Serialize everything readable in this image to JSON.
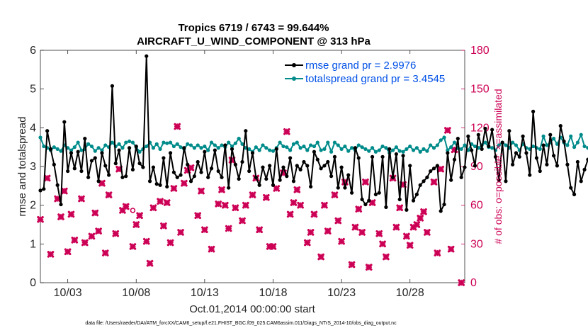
{
  "chart_data": {
    "type": "line",
    "title_line1": "Tropics 6719 / 6743 = 99.644%",
    "title_line2": "AIRCRAFT_U_WIND_COMPONENT @ 313 hPa",
    "ylabel_left": "rmse and totalspread",
    "ylabel_right": "# of obs: o=possible; ×=assimilated",
    "xlabel": "Oct.01,2014 00:00:00 start",
    "footnote": "data file: /Users/raeder/DAI/ATM_forcXX/CAM6_setup/f.e21.FHIST_BGC.f09_025.CAM6assim.011/Diags_NTrS_2014-10/obs_diag_output.nc",
    "xlim": [
      1,
      32
    ],
    "ylim_left": [
      0,
      6
    ],
    "ylim_right": [
      0,
      180
    ],
    "x_tick_values": [
      3,
      8,
      13,
      18,
      23,
      28
    ],
    "x_tick_labels": [
      "10/03",
      "10/08",
      "10/13",
      "10/18",
      "10/23",
      "10/28"
    ],
    "y_left_ticks": [
      "0",
      "1",
      "2",
      "3",
      "4",
      "5",
      "6"
    ],
    "y_right_ticks": [
      "0",
      "30",
      "60",
      "90",
      "120",
      "150",
      "180"
    ],
    "x_step_days": 0.25,
    "x_start": 1.0,
    "series": [
      {
        "name": "rmse",
        "legend": "rmse grand pr = 2.9976",
        "color": "#000000",
        "axis": "left",
        "values": [
          2.38,
          2.42,
          3.92,
          3.45,
          3.05,
          2.52,
          2.02,
          4.15,
          2.88,
          3.35,
          2.95,
          3.38,
          2.88,
          3.72,
          2.72,
          3.15,
          3.22,
          2.62,
          3.35,
          3.02,
          2.78,
          5.08,
          3.08,
          3.42,
          2.72,
          2.75,
          3.48,
          2.92,
          3.52,
          3.08,
          2.98,
          5.85,
          2.62,
          2.98,
          2.55,
          2.52,
          3.22,
          2.48,
          3.35,
          2.85,
          2.72,
          2.78,
          3.48,
          3.05,
          2.62,
          2.75,
          3.12,
          2.85,
          3.38,
          2.72,
          2.95,
          3.42,
          2.88,
          2.72,
          3.55,
          2.45,
          3.45,
          3.05,
          2.68,
          3.12,
          3.92,
          2.88,
          3.35,
          2.72,
          2.52,
          2.98,
          2.68,
          3.02,
          2.52,
          3.45,
          2.65,
          2.98,
          2.75,
          3.22,
          2.62,
          3.02,
          2.92,
          3.12,
          3.02,
          2.48,
          3.38,
          3.18,
          2.95,
          3.02,
          3.12,
          2.75,
          3.25,
          2.45,
          2.98,
          2.45,
          2.78,
          2.32,
          3.48,
          3.22,
          2.15,
          2.02,
          2.12,
          3.25,
          2.28,
          2.32,
          3.25,
          1.95,
          3.45,
          2.72,
          3.32,
          2.15,
          3.28,
          1.88,
          3.02,
          2.12,
          2.28,
          2.52,
          2.62,
          2.72,
          2.88,
          2.95,
          3.02,
          1.85,
          2.02,
          3.35,
          2.65,
          3.18,
          3.72,
          2.72,
          2.98,
          3.78,
          3.42,
          3.02,
          3.82,
          3.45,
          3.98,
          3.52,
          3.95,
          3.25,
          2.65,
          3.62,
          2.62,
          3.92,
          3.05,
          3.35,
          3.25,
          3.78,
          3.35,
          2.78,
          4.42,
          3.22,
          2.88,
          3.55,
          3.05,
          3.82,
          3.28,
          3.02,
          4.05,
          3.65,
          3.05,
          2.45,
          2.28,
          3.12,
          2.62,
          2.92,
          3.18
        ]
      },
      {
        "name": "totalspread",
        "legend": "totalspread grand pr = 3.4545",
        "color": "#008b8b",
        "axis": "left",
        "values": [
          3.75,
          3.52,
          3.48,
          3.42,
          3.5,
          3.45,
          3.4,
          3.55,
          3.48,
          3.42,
          3.5,
          3.62,
          3.42,
          3.45,
          3.58,
          3.52,
          3.4,
          3.48,
          3.42,
          3.55,
          3.5,
          3.62,
          3.52,
          3.58,
          3.48,
          3.62,
          3.65,
          3.62,
          3.5,
          3.38,
          3.45,
          3.52,
          3.62,
          3.48,
          3.58,
          3.45,
          3.62,
          3.6,
          3.62,
          3.52,
          3.58,
          3.5,
          3.45,
          3.58,
          3.55,
          3.48,
          3.55,
          3.48,
          3.52,
          3.42,
          3.62,
          3.55,
          3.48,
          3.55,
          3.5,
          3.62,
          3.52,
          3.6,
          3.72,
          3.58,
          3.48,
          3.45,
          3.38,
          3.5,
          3.42,
          3.55,
          3.48,
          3.42,
          3.4,
          3.48,
          3.62,
          3.52,
          3.5,
          3.42,
          3.58,
          3.62,
          3.48,
          3.52,
          3.42,
          3.55,
          3.52,
          3.62,
          3.42,
          3.45,
          3.62,
          3.38,
          3.62,
          3.55,
          3.45,
          3.52,
          3.4,
          3.48,
          3.42,
          3.55,
          3.5,
          3.45,
          3.4,
          3.48,
          3.38,
          3.42,
          3.52,
          3.48,
          3.35,
          3.42,
          3.5,
          3.4,
          3.38,
          3.45,
          3.52,
          3.42,
          3.48,
          3.38,
          3.45,
          3.4,
          3.55,
          3.48,
          3.55,
          3.68,
          3.75,
          3.42,
          3.5,
          3.62,
          3.48,
          3.45,
          3.55,
          3.42,
          3.58,
          3.52,
          3.48,
          3.55,
          3.62,
          3.5,
          3.48,
          3.42,
          3.55,
          3.62,
          3.55,
          3.48,
          3.62,
          3.55,
          3.42,
          3.58,
          3.48,
          3.45,
          3.52,
          3.48,
          3.45,
          3.78,
          3.55,
          3.62,
          3.72,
          3.58,
          3.75,
          3.62,
          3.55,
          3.78,
          3.5,
          3.62,
          3.82,
          3.52,
          3.48,
          3.42,
          3.58
        ]
      }
    ],
    "obs_assimilated": {
      "color": "#cc0055",
      "axis": "right",
      "marker": "x",
      "points": [
        [
          1.0,
          49
        ],
        [
          1.5,
          81
        ],
        [
          1.75,
          22
        ],
        [
          2.25,
          65
        ],
        [
          2.5,
          51
        ],
        [
          2.75,
          71
        ],
        [
          3.0,
          24
        ],
        [
          3.25,
          53
        ],
        [
          3.5,
          33
        ],
        [
          4.0,
          65
        ],
        [
          4.25,
          31
        ],
        [
          4.75,
          36
        ],
        [
          5.0,
          54
        ],
        [
          5.25,
          40
        ],
        [
          5.5,
          77
        ],
        [
          5.75,
          23
        ],
        [
          6.0,
          68
        ],
        [
          6.5,
          38
        ],
        [
          6.75,
          88
        ],
        [
          7.0,
          56
        ],
        [
          7.25,
          59
        ],
        [
          7.75,
          28
        ],
        [
          8.0,
          45
        ],
        [
          8.25,
          52
        ],
        [
          8.75,
          32
        ],
        [
          9.0,
          15
        ],
        [
          9.25,
          58
        ],
        [
          9.75,
          63
        ],
        [
          10.0,
          44
        ],
        [
          10.25,
          62
        ],
        [
          10.5,
          31
        ],
        [
          10.75,
          73
        ],
        [
          11.0,
          121
        ],
        [
          11.25,
          39
        ],
        [
          11.5,
          77
        ],
        [
          11.75,
          87
        ],
        [
          12.0,
          89
        ],
        [
          12.5,
          52
        ],
        [
          12.75,
          71
        ],
        [
          13.0,
          41
        ],
        [
          13.5,
          26
        ],
        [
          14.0,
          61
        ],
        [
          14.25,
          72
        ],
        [
          14.5,
          60
        ],
        [
          14.75,
          42
        ],
        [
          15.0,
          95
        ],
        [
          15.25,
          58
        ],
        [
          15.75,
          48
        ],
        [
          16.0,
          60
        ],
        [
          16.5,
          68
        ],
        [
          16.75,
          81
        ],
        [
          17.0,
          41
        ],
        [
          17.5,
          66
        ],
        [
          17.75,
          28
        ],
        [
          18.0,
          28
        ],
        [
          18.25,
          73
        ],
        [
          18.75,
          85
        ],
        [
          19.0,
          117
        ],
        [
          19.25,
          53
        ],
        [
          19.5,
          62
        ],
        [
          19.75,
          72
        ],
        [
          20.0,
          60
        ],
        [
          20.5,
          31
        ],
        [
          20.75,
          39
        ],
        [
          21.0,
          53
        ],
        [
          21.5,
          20
        ],
        [
          21.75,
          60
        ],
        [
          22.0,
          40
        ],
        [
          22.5,
          68
        ],
        [
          22.75,
          48
        ],
        [
          23.0,
          32
        ],
        [
          23.25,
          78
        ],
        [
          23.75,
          14
        ],
        [
          24.0,
          43
        ],
        [
          24.25,
          57
        ],
        [
          24.5,
          39
        ],
        [
          24.75,
          78
        ],
        [
          25.0,
          12
        ],
        [
          25.25,
          62
        ],
        [
          25.75,
          38
        ],
        [
          26.0,
          30
        ],
        [
          26.25,
          20
        ],
        [
          26.75,
          81
        ],
        [
          27.0,
          43
        ],
        [
          27.25,
          58
        ],
        [
          27.5,
          76
        ],
        [
          27.75,
          36
        ],
        [
          28.0,
          29
        ],
        [
          28.25,
          43
        ],
        [
          28.5,
          45
        ],
        [
          28.75,
          50
        ],
        [
          29.0,
          55
        ],
        [
          29.25,
          39
        ],
        [
          29.75,
          78
        ],
        [
          30.0,
          23
        ],
        [
          30.25,
          88
        ],
        [
          30.75,
          118
        ],
        [
          31.0,
          26
        ],
        [
          31.25,
          103
        ],
        [
          31.75,
          0
        ]
      ]
    },
    "obs_possible": {
      "color": "#cc0055",
      "axis": "right",
      "marker": "o",
      "points": [
        [
          7.75,
          56
        ]
      ]
    }
  }
}
